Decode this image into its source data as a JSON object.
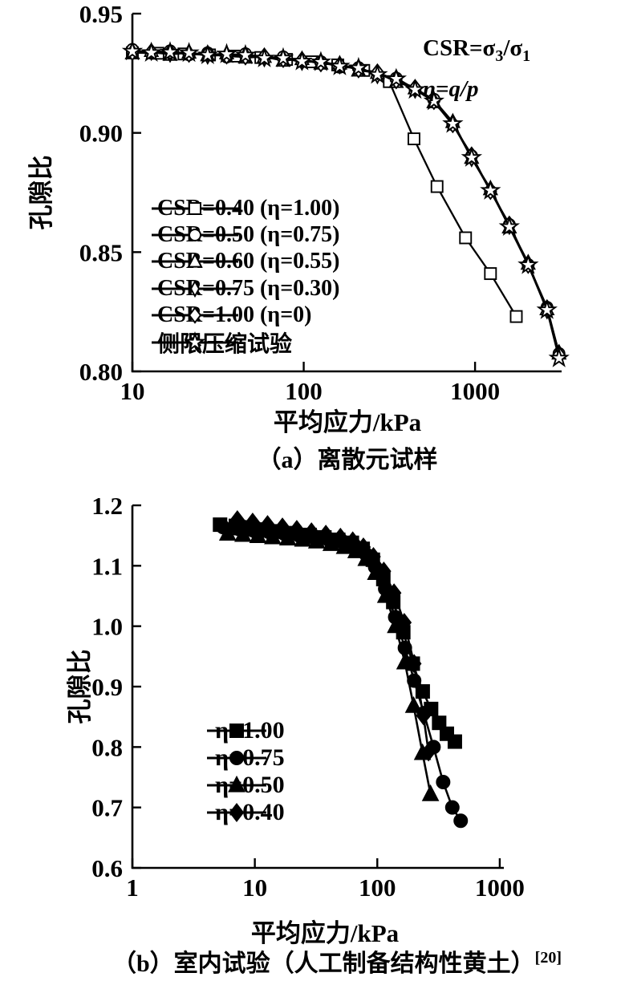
{
  "figure": {
    "background": "#ffffff",
    "ink": "#000000",
    "panel_a": {
      "caption": "（a）离散元试样",
      "xlabel": "平均应力/kPa",
      "ylabel": "孔隙比",
      "annotation_line1_parts": [
        [
          "CSR=σ",
          ""
        ],
        [
          "3",
          "sub"
        ],
        [
          "/σ",
          ""
        ],
        [
          "1",
          "sub"
        ]
      ],
      "annotation_line2_parts": [
        [
          "η=q/p",
          "ital"
        ]
      ]
    },
    "panel_b": {
      "caption_main": "（b）室内试验（人工制备结构性黄土）",
      "caption_sup": "[20]",
      "xlabel": "平均应力/kPa",
      "ylabel": "孔隙比"
    }
  },
  "chart_data": [
    {
      "id": "panel-a",
      "type": "line",
      "xscale": "log",
      "xlabel": "平均应力/kPa",
      "ylabel": "孔隙比",
      "xlim": [
        10,
        3200
      ],
      "ylim": [
        0.8,
        0.95
      ],
      "grid": false,
      "legend_position": "inside-left-middle",
      "xticks": [
        {
          "v": 10,
          "label": "10"
        },
        {
          "v": 100,
          "label": "100"
        },
        {
          "v": 1000,
          "label": "1000"
        }
      ],
      "yticks": [
        {
          "v": 0.95,
          "label": "0.95"
        },
        {
          "v": 0.9,
          "label": "0.90"
        },
        {
          "v": 0.85,
          "label": "0.85"
        },
        {
          "v": 0.8,
          "label": "0.80"
        }
      ],
      "series": [
        {
          "name": "CSR=0.40 (η=1.00)",
          "marker": "square-open",
          "x": [
            10,
            14.1,
            20,
            28.2,
            39.8,
            56.2,
            79.4,
            112,
            158,
            224,
            316,
            440,
            600,
            880,
            1230,
            1740
          ],
          "y": [
            0.9336,
            0.9334,
            0.9331,
            0.9327,
            0.9322,
            0.9316,
            0.9308,
            0.9298,
            0.9285,
            0.9262,
            0.9215,
            0.8975,
            0.8775,
            0.856,
            0.841,
            0.823
          ]
        },
        {
          "name": "CSR=0.50 (η=0.75)",
          "marker": "circle-open",
          "x": [
            10,
            12.9,
            16.6,
            21.4,
            27.5,
            35.5,
            45.7,
            58.9,
            75.9,
            97.7,
            125.9,
            162.2,
            208.9,
            269.2,
            346.7,
            446.7,
            575.4,
            741.3,
            955,
            1230,
            1585,
            2042,
            2630,
            3090
          ],
          "y": [
            0.935,
            0.9334,
            0.9344,
            0.9327,
            0.9336,
            0.9318,
            0.9332,
            0.9315,
            0.9319,
            0.9298,
            0.9299,
            0.9275,
            0.9274,
            0.9244,
            0.923,
            0.9183,
            0.9141,
            0.9034,
            0.8904,
            0.8756,
            0.8616,
            0.8448,
            0.8269,
            0.8075
          ]
        },
        {
          "name": "CSR=0.60 (η=0.55)",
          "marker": "triangle-open",
          "x": [
            10,
            12.9,
            16.6,
            21.4,
            27.5,
            35.5,
            45.7,
            58.9,
            75.9,
            97.7,
            125.9,
            162.2,
            208.9,
            269.2,
            346.7,
            446.7,
            575.4,
            741.3,
            955,
            1230,
            1585,
            2042,
            2630,
            3090
          ],
          "y": [
            0.9334,
            0.9344,
            0.9328,
            0.9337,
            0.9326,
            0.9334,
            0.9316,
            0.9319,
            0.9303,
            0.931,
            0.9291,
            0.9291,
            0.9262,
            0.9252,
            0.9214,
            0.9187,
            0.9129,
            0.9046,
            0.8896,
            0.8764,
            0.8604,
            0.8452,
            0.8261,
            0.8075
          ]
        },
        {
          "name": "CSR=0.75 (η=0.30)",
          "marker": "diamond-thin-open",
          "x": [
            10,
            12.9,
            16.6,
            21.4,
            27.5,
            35.5,
            45.7,
            58.9,
            75.9,
            97.7,
            125.9,
            162.2,
            208.9,
            269.2,
            346.7,
            446.7,
            575.4,
            741.3,
            955,
            1230,
            1585,
            2042,
            2630,
            3090
          ],
          "y": [
            0.9344,
            0.9338,
            0.933,
            0.9339,
            0.9322,
            0.9328,
            0.933,
            0.9311,
            0.9315,
            0.9296,
            0.9301,
            0.9281,
            0.9276,
            0.924,
            0.9232,
            0.9179,
            0.9137,
            0.9046,
            0.8892,
            0.8766,
            0.8608,
            0.8456,
            0.8254,
            0.8079
          ]
        },
        {
          "name": "CSR=1.00 (η=0)",
          "marker": "diamond-open",
          "x": [
            10,
            12.9,
            16.6,
            21.4,
            27.5,
            35.5,
            45.7,
            58.9,
            75.9,
            97.7,
            125.9,
            162.2,
            208.9,
            269.2,
            346.7,
            446.7,
            575.4,
            741.3,
            955,
            1230,
            1585,
            2042,
            2630,
            3090
          ],
          "y": [
            0.9336,
            0.9342,
            0.934,
            0.9329,
            0.9334,
            0.9322,
            0.9318,
            0.9323,
            0.9307,
            0.9308,
            0.9289,
            0.9287,
            0.9264,
            0.9256,
            0.9218,
            0.9191,
            0.9131,
            0.9034,
            0.8908,
            0.8754,
            0.8618,
            0.8444,
            0.8267,
            0.8071
          ]
        },
        {
          "name": "侧限压缩试验",
          "marker": "star-open",
          "x": [
            10,
            12.9,
            16.6,
            21.4,
            27.5,
            35.5,
            45.7,
            58.9,
            75.9,
            97.7,
            125.9,
            162.2,
            208.9,
            269.2,
            346.7,
            446.7,
            575.4,
            741.3,
            955,
            1230,
            1585,
            2042,
            2630,
            3090
          ],
          "y": [
            0.9342,
            0.9336,
            0.9338,
            0.9335,
            0.9326,
            0.933,
            0.9326,
            0.9313,
            0.9313,
            0.93,
            0.9297,
            0.9279,
            0.9272,
            0.9244,
            0.9226,
            0.9181,
            0.9133,
            0.9038,
            0.8896,
            0.8758,
            0.8606,
            0.8446,
            0.8257,
            0.8055
          ]
        }
      ]
    },
    {
      "id": "panel-b",
      "type": "line",
      "xscale": "log",
      "xlabel": "平均应力/kPa",
      "ylabel": "孔隙比",
      "xlim": [
        1,
        1080
      ],
      "ylim": [
        0.6,
        1.2
      ],
      "grid": false,
      "legend_position": "inside-center-bottom",
      "xticks": [
        {
          "v": 1,
          "label": "1"
        },
        {
          "v": 10,
          "label": "10"
        },
        {
          "v": 100,
          "label": "100"
        },
        {
          "v": 1000,
          "label": "1000"
        }
      ],
      "yticks": [
        {
          "v": 1.2,
          "label": "1.2"
        },
        {
          "v": 1.1,
          "label": "1.1"
        },
        {
          "v": 1.0,
          "label": "1.0"
        },
        {
          "v": 0.9,
          "label": "0.9"
        },
        {
          "v": 0.8,
          "label": "0.8"
        },
        {
          "v": 0.7,
          "label": "0.7"
        },
        {
          "v": 0.6,
          "label": "0.6"
        }
      ],
      "series": [
        {
          "name": "η=1.00",
          "marker": "square-filled",
          "x": [
            5.2,
            7,
            9,
            12,
            16,
            21,
            28,
            37,
            48,
            62,
            76,
            92,
            112,
            135,
            163,
            195,
            235,
            275,
            320,
            370,
            430
          ],
          "y": [
            1.168,
            1.166,
            1.163,
            1.16,
            1.157,
            1.154,
            1.151,
            1.147,
            1.143,
            1.138,
            1.128,
            1.11,
            1.078,
            1.04,
            0.99,
            0.938,
            0.892,
            0.863,
            0.84,
            0.822,
            0.809
          ]
        },
        {
          "name": "η=0.75",
          "marker": "circle-filled",
          "x": [
            5.5,
            7.4,
            9.8,
            13,
            17.4,
            23,
            30,
            40,
            52,
            66,
            80,
            96,
            116,
            140,
            168,
            200,
            240,
            288,
            345,
            410,
            480
          ],
          "y": [
            1.164,
            1.161,
            1.158,
            1.156,
            1.153,
            1.15,
            1.147,
            1.143,
            1.139,
            1.132,
            1.12,
            1.098,
            1.062,
            1.015,
            0.964,
            0.91,
            0.856,
            0.8,
            0.742,
            0.7,
            0.678
          ]
        },
        {
          "name": "η=0.50",
          "marker": "triangle-filled",
          "x": [
            6,
            8,
            10.6,
            14,
            18.6,
            24.6,
            32,
            42,
            54,
            67,
            81,
            97,
            117,
            141,
            168,
            198,
            234,
            272
          ],
          "y": [
            1.153,
            1.151,
            1.149,
            1.147,
            1.145,
            1.143,
            1.14,
            1.136,
            1.131,
            1.124,
            1.111,
            1.088,
            1.05,
            1.0,
            0.94,
            0.868,
            0.79,
            0.722
          ]
        },
        {
          "name": "η=0.40",
          "marker": "diamond-filled",
          "x": [
            7.2,
            9.6,
            12.7,
            16.8,
            22,
            29,
            38,
            50,
            63,
            77,
            93,
            113,
            137,
            166,
            200,
            238,
            262
          ],
          "y": [
            1.176,
            1.172,
            1.168,
            1.164,
            1.16,
            1.156,
            1.152,
            1.147,
            1.141,
            1.131,
            1.115,
            1.091,
            1.055,
            1.006,
            0.938,
            0.852,
            0.792
          ]
        }
      ]
    }
  ]
}
